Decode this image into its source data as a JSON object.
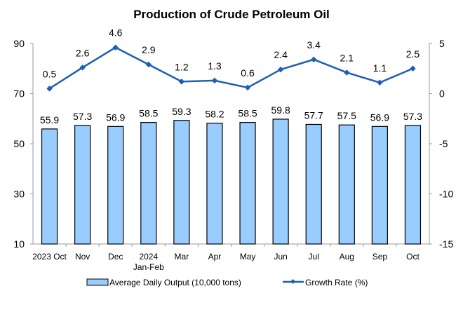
{
  "chart_data": {
    "type": "bar+line",
    "title": "Production of Crude Petroleum Oil",
    "categories": [
      "2023 Oct",
      "Nov",
      "Dec",
      "2024\nJan-Feb",
      "Mar",
      "Apr",
      "May",
      "Jun",
      "Jul",
      "Aug",
      "Sep",
      "Oct"
    ],
    "series": [
      {
        "name": "Average Daily Output (10,000 tons)",
        "type": "bar",
        "axis": "left",
        "color": "#99CCFF",
        "values": [
          55.9,
          57.3,
          56.9,
          58.5,
          59.3,
          58.2,
          58.5,
          59.8,
          57.7,
          57.5,
          56.9,
          57.3
        ]
      },
      {
        "name": "Growth Rate (%)",
        "type": "line",
        "axis": "right",
        "color": "#1F5FB4",
        "values": [
          0.5,
          2.6,
          4.6,
          2.9,
          1.2,
          1.3,
          0.6,
          2.4,
          3.4,
          2.1,
          1.1,
          2.5
        ]
      }
    ],
    "left_axis": {
      "range": [
        10,
        90
      ],
      "ticks": [
        10,
        30,
        50,
        70,
        90
      ]
    },
    "right_axis": {
      "range": [
        -15,
        5
      ],
      "ticks": [
        -15,
        -10,
        -5,
        0,
        5
      ]
    },
    "grid": false,
    "legend_position": "bottom"
  }
}
